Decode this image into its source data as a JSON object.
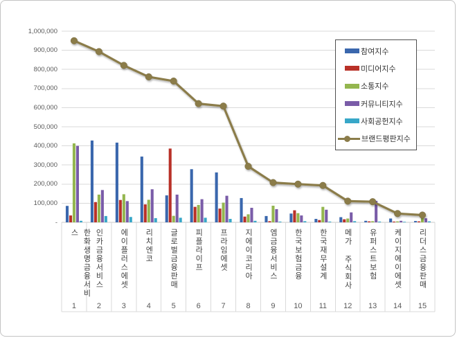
{
  "figure": {
    "background": "#ffffff",
    "border_color": "#c3c3c3",
    "grid_color": "#d9d9d9",
    "axis_color": "#c8c8c8",
    "label_divider_color": "#d9d9d9"
  },
  "chart_data": {
    "type": "bar",
    "subtype": "grouped-bars-with-line-overlay",
    "title": "",
    "xlabel": "",
    "ylabel": "",
    "ylim": [
      0,
      1000000
    ],
    "grid": true,
    "legend_position": "inside-top-right",
    "categories": [
      "한화생명금융서비스",
      "인카금융서비스",
      "에이플러스에셋",
      "리치엔코",
      "글로벌금융판매",
      "피플라이프",
      "프라임에셋",
      "지에이코리아",
      "엠금융서비스",
      "한국보험금융",
      "한국재무설계",
      "메가 주식회사",
      "유퍼스트보험",
      "케이지에이에셋",
      "리더스금융판매"
    ],
    "category_numbers": [
      "1",
      "2",
      "3",
      "4",
      "5",
      "6",
      "7",
      "8",
      "9",
      "10",
      "11",
      "12",
      "13",
      "14",
      "15"
    ],
    "y_ticks": [
      {
        "value": 1000000,
        "label": "1,000,000"
      },
      {
        "value": 900000,
        "label": "900,000"
      },
      {
        "value": 800000,
        "label": "800,000"
      },
      {
        "value": 700000,
        "label": "700,000"
      },
      {
        "value": 600000,
        "label": "600,000"
      },
      {
        "value": 500000,
        "label": "500,000"
      },
      {
        "value": 400000,
        "label": "400,000"
      },
      {
        "value": 300000,
        "label": "300,000"
      },
      {
        "value": 200000,
        "label": "200,000"
      },
      {
        "value": 100000,
        "label": "100,000"
      },
      {
        "value": 0,
        "label": "-"
      }
    ],
    "series": [
      {
        "name": "참여지수",
        "type": "bar",
        "color": "#3a67ad",
        "values": [
          86000,
          428000,
          417000,
          344000,
          141000,
          278000,
          261000,
          127000,
          33000,
          46000,
          18000,
          27000,
          8000,
          20000,
          7000
        ]
      },
      {
        "name": "미디어지수",
        "type": "bar",
        "color": "#b93128",
        "values": [
          36000,
          106000,
          117000,
          94000,
          386000,
          81000,
          72000,
          30000,
          6000,
          63000,
          12000,
          16000,
          5000,
          4000,
          5000
        ]
      },
      {
        "name": "소통지수",
        "type": "bar",
        "color": "#94b64f",
        "values": [
          413000,
          145000,
          147000,
          118000,
          34000,
          91000,
          103000,
          42000,
          87000,
          48000,
          81000,
          20000,
          6000,
          5000,
          25000
        ]
      },
      {
        "name": "커뮤니티지수",
        "type": "bar",
        "color": "#7a5ca8",
        "values": [
          400000,
          169000,
          111000,
          173000,
          145000,
          121000,
          139000,
          76000,
          69000,
          36000,
          66000,
          52000,
          112000,
          8000,
          21000
        ]
      },
      {
        "name": "사회공헌지수",
        "type": "bar",
        "color": "#38a7c8",
        "values": [
          8000,
          33000,
          28000,
          22000,
          24000,
          24000,
          18000,
          8000,
          4000,
          6000,
          4000,
          6000,
          4000,
          3000,
          5000
        ]
      },
      {
        "name": "브랜드평판지수",
        "type": "line",
        "color": "#8b7c4a",
        "values": [
          950000,
          893000,
          821000,
          761000,
          739000,
          621000,
          608000,
          293000,
          208000,
          200000,
          193000,
          111000,
          108000,
          46000,
          38000
        ]
      }
    ]
  }
}
